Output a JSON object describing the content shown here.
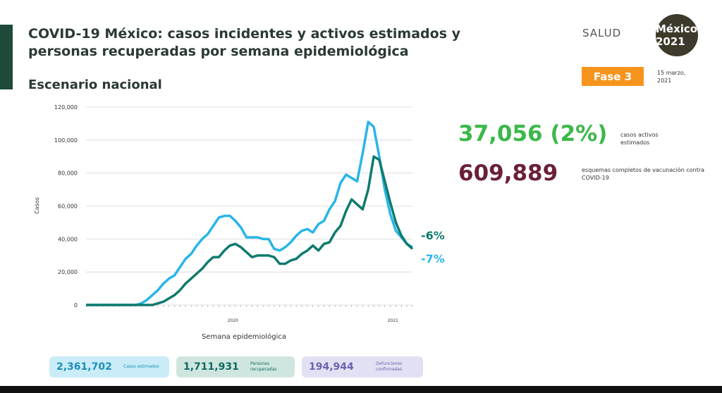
{
  "header": {
    "title": "COVID-19 México: casos incidentes y activos estimados y personas recuperadas por semana epidemiológica",
    "subtitle": "Escenario nacional",
    "agency": "SALUD",
    "logo": "México 2021",
    "phase": "Fase 3",
    "date": "15 marzo, 2021"
  },
  "highlights": [
    {
      "value": "37,056 (2%)",
      "label": "casos activos estimados"
    },
    {
      "value": "609,889",
      "label": "esquemas completos de vacunación contra COVID-19"
    }
  ],
  "summary_boxes": [
    {
      "value": "2,361,702",
      "label": "Casos estimados"
    },
    {
      "value": "1,711,931",
      "label": "Personas recuperadas"
    },
    {
      "value": "194,944",
      "label": "Defunciones confirmadas"
    }
  ],
  "chart_data": {
    "type": "line",
    "y_label": "Casos",
    "x_label": "Semana epidemiológica",
    "x_group_labels": [
      "2020",
      "2021"
    ],
    "x": [
      1,
      2,
      3,
      4,
      5,
      6,
      7,
      8,
      9,
      10,
      11,
      12,
      13,
      14,
      15,
      16,
      17,
      18,
      19,
      20,
      21,
      22,
      23,
      24,
      25,
      26,
      27,
      28,
      29,
      30,
      31,
      32,
      33,
      34,
      35,
      36,
      37,
      38,
      39,
      40,
      41,
      42,
      43,
      44,
      45,
      46,
      47,
      48,
      49,
      50,
      51,
      52,
      53,
      54,
      55,
      56,
      57,
      58,
      59,
      60
    ],
    "xlim": [
      1,
      60
    ],
    "ylim": [
      0,
      120000
    ],
    "yticks": [
      0,
      {
        "value": 20000,
        "label": "20,000"
      },
      {
        "value": 40000,
        "label": "40,000"
      },
      {
        "value": 60000,
        "label": "60,000"
      },
      {
        "value": 80000,
        "label": "80,000"
      },
      {
        "value": 100000,
        "label": "100,000"
      },
      {
        "value": 120000,
        "label": "120,000"
      }
    ],
    "end_labels": [
      "-6%",
      "-7%"
    ],
    "series": [
      {
        "color": "#29b5e8",
        "values": [
          0,
          0,
          0,
          0,
          0,
          0,
          0,
          0,
          0,
          0,
          1000,
          3000,
          6000,
          9000,
          13000,
          16000,
          18000,
          23000,
          28000,
          31000,
          36000,
          40000,
          43000,
          48000,
          53000,
          54000,
          54000,
          51000,
          47000,
          41000,
          41000,
          41000,
          40000,
          40000,
          34000,
          33000,
          35000,
          38000,
          42000,
          45000,
          46000,
          44000,
          49000,
          51000,
          58000,
          63000,
          74000,
          79000,
          77000,
          75000,
          92000,
          111000,
          108000,
          90000,
          70000,
          55000,
          45000,
          41000,
          37000,
          35000
        ]
      },
      {
        "color": "#0f7a6e",
        "values": [
          0,
          0,
          0,
          0,
          0,
          0,
          0,
          0,
          0,
          0,
          0,
          0,
          0,
          1000,
          2000,
          4000,
          6000,
          9000,
          13000,
          16000,
          19000,
          22000,
          26000,
          29000,
          29000,
          33000,
          36000,
          37000,
          35000,
          32000,
          29000,
          30000,
          30000,
          30000,
          29000,
          25000,
          25000,
          27000,
          28000,
          31000,
          33000,
          36000,
          33000,
          37000,
          38000,
          44000,
          48000,
          57000,
          64000,
          61000,
          58000,
          70000,
          90000,
          88000,
          75000,
          62000,
          50000,
          42000,
          37000,
          34000
        ]
      }
    ]
  }
}
